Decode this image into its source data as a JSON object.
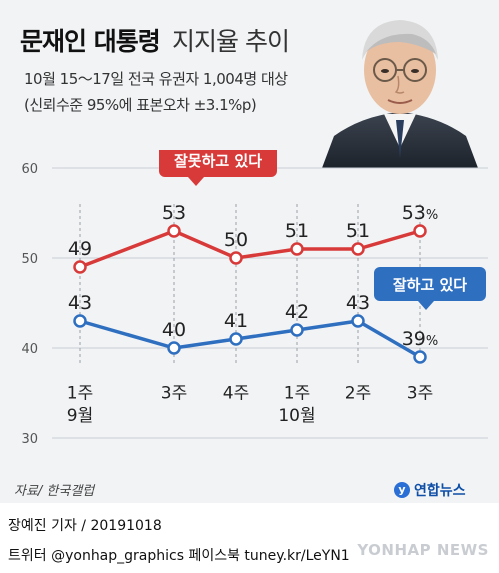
{
  "header": {
    "title_bold": "문재인 대통령",
    "title_light": "지지율 추이",
    "subtitle_1": "10월 15～17일 전국 유권자 1,004명 대상",
    "subtitle_2": "(신뢰수준 95%에 표본오차 ±3.1%p)"
  },
  "footer": {
    "source": "자료/ 한국갤럽",
    "logo_text": "연합뉴스",
    "byline": "장예진 기자 / 20191018",
    "social": "트위터 @yonhap_graphics  페이스북 tuney.kr/LeYN1",
    "watermark": "YONHAP NEWS"
  },
  "colors": {
    "negative": "#d83a3a",
    "positive": "#2f6fc0",
    "background": "#f1f3f5"
  },
  "chart_data": {
    "type": "line",
    "categories": [
      "1주",
      "3주",
      "4주",
      "1주",
      "2주",
      "3주"
    ],
    "month_labels": [
      {
        "index": 0,
        "label": "9월"
      },
      {
        "index": 3,
        "label": "10월"
      }
    ],
    "series": [
      {
        "name": "잘못하고 있다",
        "color": "#d83a3a",
        "values": [
          49,
          53,
          50,
          51,
          51,
          53
        ],
        "value_labels": [
          "49",
          "53",
          "50",
          "51",
          "51",
          "53"
        ],
        "last_suffix": "%"
      },
      {
        "name": "잘하고 있다",
        "color": "#2f6fc0",
        "values": [
          43,
          40,
          41,
          42,
          43,
          39
        ],
        "value_labels": [
          "43",
          "40",
          "41",
          "42",
          "43",
          "39"
        ],
        "last_suffix": "%"
      }
    ],
    "ylim": [
      30,
      60
    ],
    "yticks": [
      "30",
      "40",
      "50",
      "60"
    ],
    "grid": true
  }
}
